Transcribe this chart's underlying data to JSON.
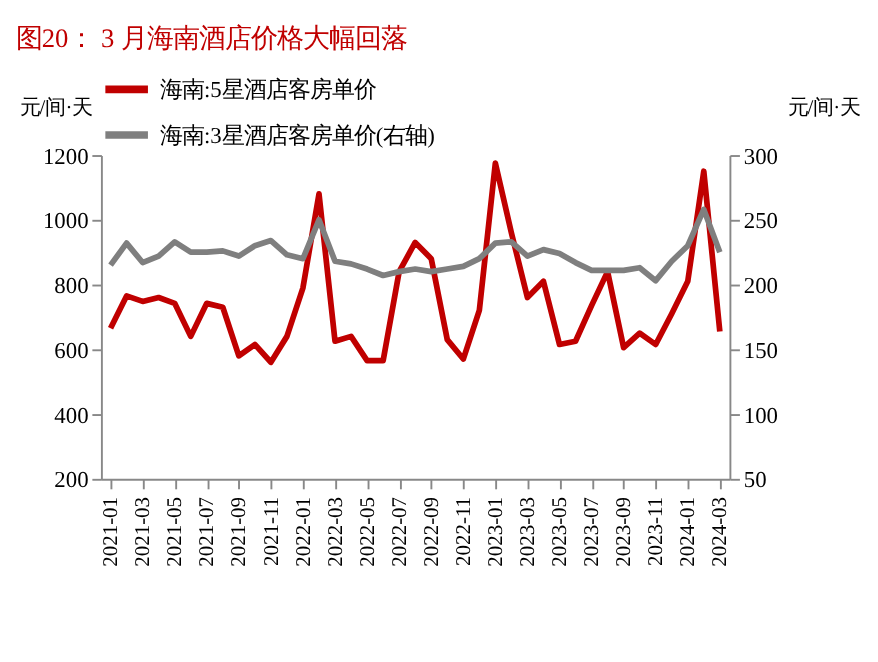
{
  "chart_data": {
    "type": "line",
    "title": "图20：  3 月海南酒店价格大幅回落",
    "ylabel": "元/间·天",
    "y2label": "元/间·天",
    "categories": [
      "2021-01",
      null,
      "2021-03",
      null,
      "2021-05",
      null,
      "2021-07",
      null,
      "2021-09",
      null,
      "2021-11",
      null,
      "2022-01",
      null,
      "2022-03",
      null,
      "2022-05",
      null,
      "2022-07",
      null,
      "2022-09",
      null,
      "2022-11",
      null,
      "2023-01",
      null,
      "2023-03",
      null,
      "2023-05",
      null,
      "2023-07",
      null,
      "2023-09",
      null,
      "2023-11",
      null,
      "2024-01",
      null,
      "2024-03"
    ],
    "series": [
      {
        "name": "海南:5星酒店客房单价",
        "color": "#c00000",
        "values": [
          665,
          765,
          748,
          760,
          742,
          640,
          742,
          730,
          580,
          615,
          560,
          640,
          790,
          1080,
          625,
          640,
          565,
          565,
          840,
          930,
          880,
          630,
          570,
          720,
          1175,
          960,
          760,
          810,
          615,
          625,
          735,
          840,
          605,
          650,
          615,
          710,
          810,
          1150,
          655
        ]
      },
      {
        "name": "海南:3星酒店客房单价(右轴)",
        "color": "#7f7f7f",
        "axis": "y2",
        "values": [
          215,
          232,
          217,
          222,
          233,
          225,
          225,
          226,
          222,
          230,
          234,
          223,
          220,
          250,
          218,
          216,
          212,
          207,
          210,
          212,
          210,
          212,
          214,
          220,
          232,
          233,
          222,
          227,
          224,
          217,
          211,
          211,
          211,
          213,
          203,
          218,
          230,
          258,
          225
        ]
      }
    ],
    "ylim": [
      200,
      1200
    ],
    "yticks": [
      200,
      400,
      600,
      800,
      1000,
      1200
    ],
    "y2lim": [
      50,
      300
    ],
    "y2ticks": [
      50,
      100,
      150,
      200,
      250,
      300
    ],
    "grid": false,
    "legend": "top",
    "marker": "none",
    "line_style": "solid"
  }
}
